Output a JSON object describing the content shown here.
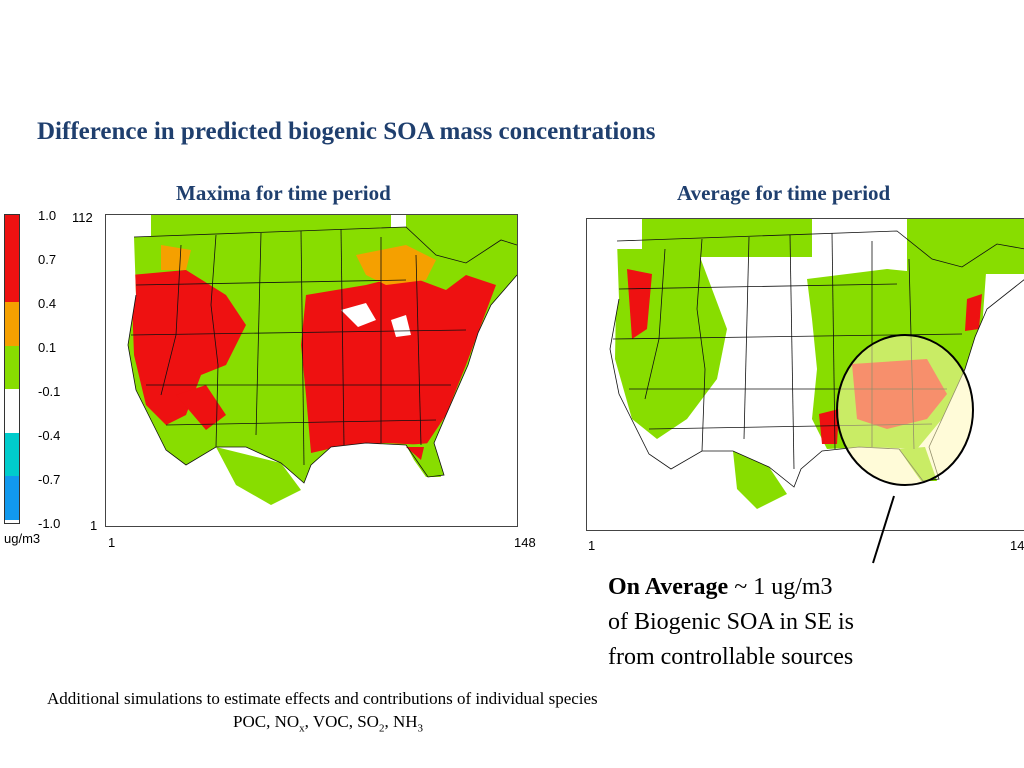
{
  "title": "Difference in predicted biogenic SOA mass concentrations",
  "left_map": {
    "title": "Maxima for time period",
    "x_start": "1",
    "x_end": "148",
    "y_top": "112",
    "y_bottom": "1"
  },
  "right_map": {
    "title": "Average for time period",
    "x_start": "1",
    "x_end": "14"
  },
  "legend": {
    "unit": "ug/m3",
    "levels": [
      "1.0",
      "0.7",
      "0.4",
      "0.1",
      "-0.1",
      "-0.4",
      "-0.7",
      "-1.0"
    ],
    "colors": [
      "#ee1111",
      "#ee1111",
      "#f5a000",
      "#88dd00",
      "#ffffff",
      "#00cccc",
      "#1199ee",
      "#0000ee"
    ]
  },
  "note": {
    "bold": "On Average",
    "line1_rest": " ~ 1 ug/m3",
    "line2": "of Biogenic SOA in SE is",
    "line3": "from controllable sources"
  },
  "footer": {
    "line1": "Additional simulations to estimate effects and contributions of individual species",
    "species": [
      "POC",
      "NO",
      "x",
      ", VOC, SO",
      "2",
      ", NH",
      "3"
    ]
  }
}
